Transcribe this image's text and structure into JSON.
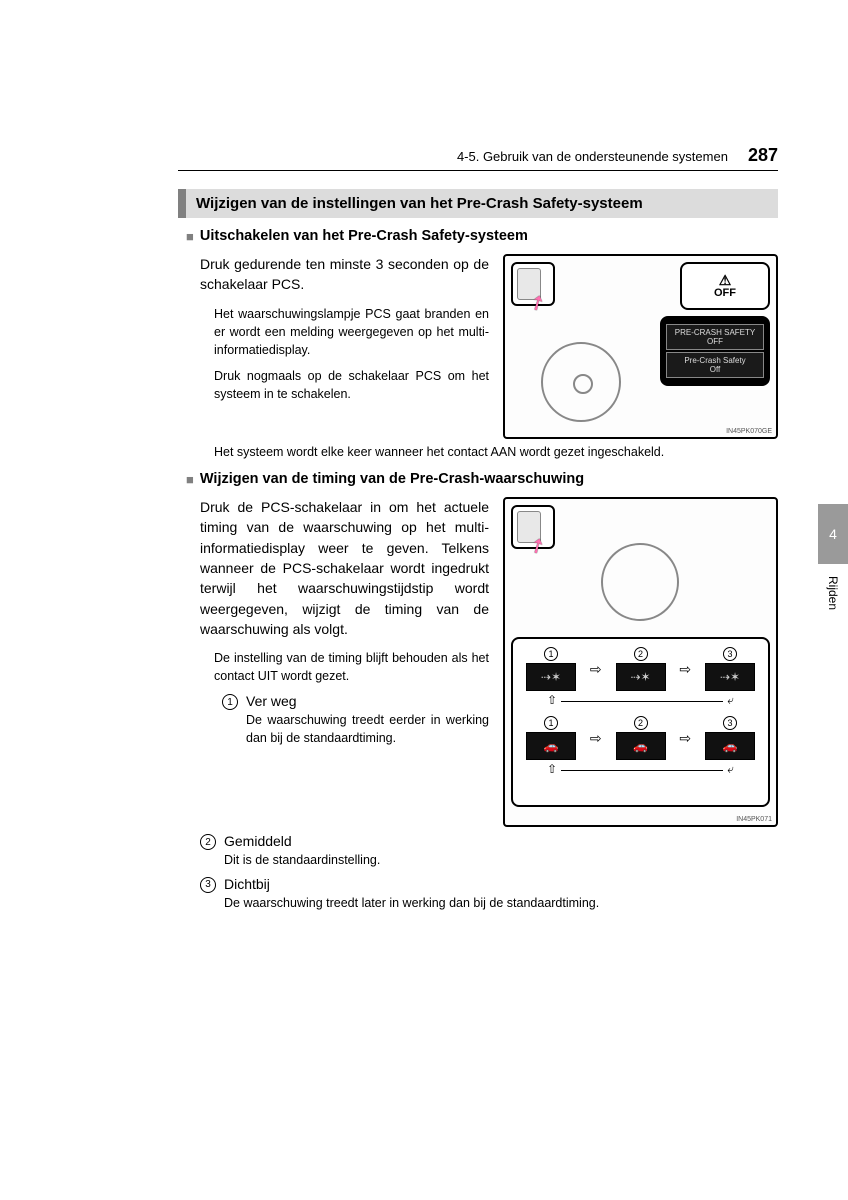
{
  "header": {
    "breadcrumb": "4-5. Gebruik van de ondersteunende systemen",
    "page_number": "287"
  },
  "side_tab": {
    "number": "4",
    "label": "Rijden"
  },
  "section_title": "Wijzigen van de instellingen van het Pre-Crash Safety-systeem",
  "section1": {
    "heading": "Uitschakelen van het Pre-Crash Safety-systeem",
    "para1": "Druk gedurende ten minste 3 seconden op de schakelaar PCS.",
    "note1": "Het waarschuwingslampje PCS gaat branden en er wordt een melding weergegeven op het multi-informatiedisplay.",
    "note2": "Druk nogmaals op de schakelaar PCS om het systeem in te schakelen.",
    "note3": "Het systeem wordt elke keer wanneer het contact AAN wordt gezet ingeschakeld.",
    "figure": {
      "off_label": "OFF",
      "screen_line1": "PRE-CRASH SAFETY",
      "screen_line1b": "OFF",
      "screen_line2": "Pre-Crash Safety",
      "screen_line2b": "Off",
      "code": "IN45PK070GE"
    }
  },
  "section2": {
    "heading": "Wijzigen van de timing van de Pre-Crash-waarschuwing",
    "para1": "Druk de PCS-schakelaar in om het actuele timing van de waarschuwing op het multi-informatiedisplay weer te geven. Telkens wanneer de PCS-schakelaar wordt ingedrukt terwijl het waarschuwingstijdstip wordt weergegeven, wijzigt de timing van de waarschuwing als volgt.",
    "note1": "De instelling van de timing blijft behouden als het contact UIT wordt gezet.",
    "items": [
      {
        "num": "1",
        "label": "Ver weg",
        "desc": "De waarschuwing treedt eerder in werking dan bij de standaardtiming."
      },
      {
        "num": "2",
        "label": "Gemiddeld",
        "desc": "Dit is de standaardinstelling."
      },
      {
        "num": "3",
        "label": "Dichtbij",
        "desc": "De waarschuwing treedt later in werking dan bij de standaardtiming."
      }
    ],
    "figure": {
      "seq_numbers": [
        "1",
        "2",
        "3"
      ],
      "code": "IN45PK071"
    }
  },
  "colors": {
    "section_bg": "#dcdcdc",
    "section_border": "#808080",
    "tab_bg": "#9a9a9a",
    "arrow_pink": "#ff6fb0"
  }
}
